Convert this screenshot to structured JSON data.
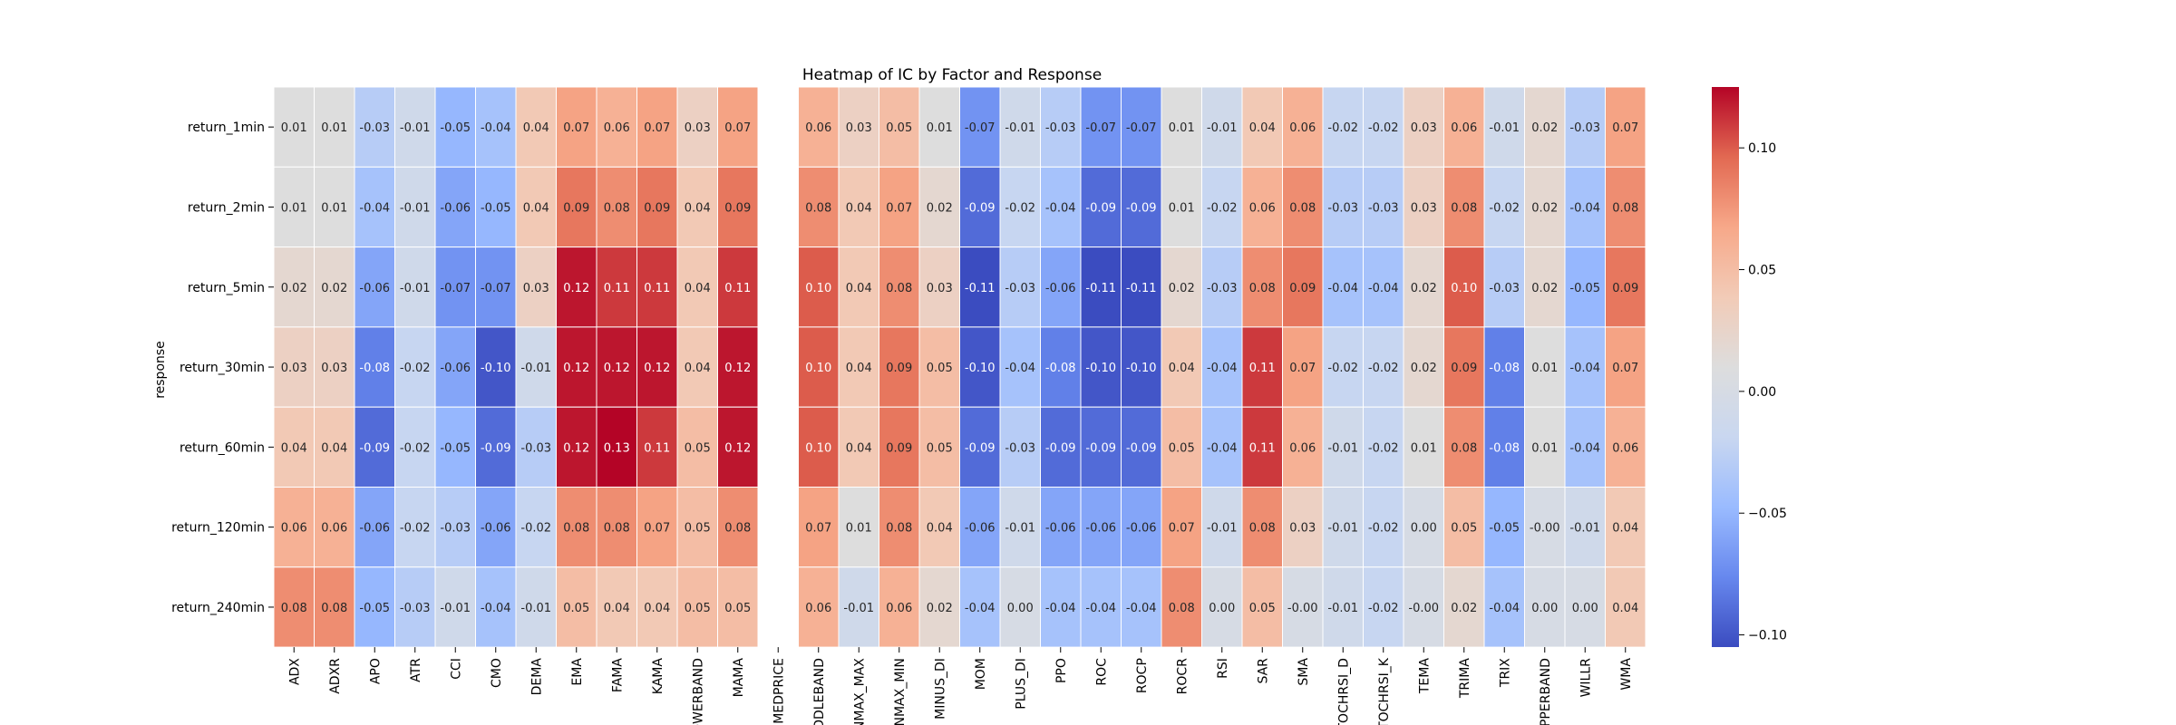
{
  "chart_data": {
    "type": "heatmap",
    "title": "Heatmap of IC by Factor and Response",
    "xlabel": "",
    "ylabel": "response",
    "columns": [
      "ADX",
      "ADXR",
      "APO",
      "ATR",
      "CCI",
      "CMO",
      "DEMA",
      "EMA",
      "FAMA",
      "KAMA",
      "OWERBAND",
      "MAMA",
      "MEDPRICE",
      "IDDLEBAND",
      "NMAX_MAX",
      "NMAX_MIN",
      "MINUS_DI",
      "MOM",
      "PLUS_DI",
      "PPO",
      "ROC",
      "ROCP",
      "ROCR",
      "RSI",
      "SAR",
      "SMA",
      "TOCHRSI_D",
      "TOCHRSI_K",
      "TEMA",
      "TRIMA",
      "TRIX",
      "PPERBAND",
      "WILLR",
      "WMA"
    ],
    "rows": [
      "return_1min",
      "return_2min",
      "return_5min",
      "return_30min",
      "return_60min",
      "return_120min",
      "return_240min"
    ],
    "values": [
      [
        0.01,
        0.01,
        -0.03,
        -0.01,
        -0.05,
        -0.04,
        0.04,
        0.07,
        0.06,
        0.07,
        0.03,
        0.07,
        null,
        0.06,
        0.03,
        0.05,
        0.01,
        -0.07,
        -0.01,
        -0.03,
        -0.07,
        -0.07,
        0.01,
        -0.01,
        0.04,
        0.06,
        -0.02,
        -0.02,
        0.03,
        0.06,
        -0.01,
        0.02,
        -0.03,
        0.07
      ],
      [
        0.01,
        0.01,
        -0.04,
        -0.01,
        -0.06,
        -0.05,
        0.04,
        0.09,
        0.08,
        0.09,
        0.04,
        0.09,
        null,
        0.08,
        0.04,
        0.07,
        0.02,
        -0.09,
        -0.02,
        -0.04,
        -0.09,
        -0.09,
        0.01,
        -0.02,
        0.06,
        0.08,
        -0.03,
        -0.03,
        0.03,
        0.08,
        -0.02,
        0.02,
        -0.04,
        0.08
      ],
      [
        0.02,
        0.02,
        -0.06,
        -0.01,
        -0.07,
        -0.07,
        0.03,
        0.12,
        0.11,
        0.11,
        0.04,
        0.11,
        null,
        0.1,
        0.04,
        0.08,
        0.03,
        -0.11,
        -0.03,
        -0.06,
        -0.11,
        -0.11,
        0.02,
        -0.03,
        0.08,
        0.09,
        -0.04,
        -0.04,
        0.02,
        0.1,
        -0.03,
        0.02,
        -0.05,
        0.09
      ],
      [
        0.03,
        0.03,
        -0.08,
        -0.02,
        -0.06,
        -0.1,
        -0.01,
        0.12,
        0.12,
        0.12,
        0.04,
        0.12,
        null,
        0.1,
        0.04,
        0.09,
        0.05,
        -0.1,
        -0.04,
        -0.08,
        -0.1,
        -0.1,
        0.04,
        -0.04,
        0.11,
        0.07,
        -0.02,
        -0.02,
        0.02,
        0.09,
        -0.08,
        0.01,
        -0.04,
        0.07
      ],
      [
        0.04,
        0.04,
        -0.09,
        -0.02,
        -0.05,
        -0.09,
        -0.03,
        0.12,
        0.13,
        0.11,
        0.05,
        0.12,
        null,
        0.1,
        0.04,
        0.09,
        0.05,
        -0.09,
        -0.03,
        -0.09,
        -0.09,
        -0.09,
        0.05,
        -0.04,
        0.11,
        0.06,
        -0.01,
        -0.02,
        0.01,
        0.08,
        -0.08,
        0.01,
        -0.04,
        0.06
      ],
      [
        0.06,
        0.06,
        -0.06,
        -0.02,
        -0.03,
        -0.06,
        -0.02,
        0.08,
        0.08,
        0.07,
        0.05,
        0.08,
        null,
        0.07,
        0.01,
        0.08,
        0.04,
        -0.06,
        -0.01,
        -0.06,
        -0.06,
        -0.06,
        0.07,
        -0.01,
        0.08,
        0.03,
        -0.01,
        -0.02,
        0.0,
        0.05,
        -0.05,
        -0.0,
        -0.01,
        0.04
      ],
      [
        0.08,
        0.08,
        -0.05,
        -0.03,
        -0.01,
        -0.04,
        -0.01,
        0.05,
        0.04,
        0.04,
        0.05,
        0.05,
        null,
        0.06,
        -0.01,
        0.06,
        0.02,
        -0.04,
        0.0,
        -0.04,
        -0.04,
        -0.04,
        0.08,
        0.0,
        0.05,
        -0.0,
        -0.01,
        -0.02,
        -0.0,
        0.02,
        -0.04,
        0.0,
        0.0,
        0.04
      ]
    ],
    "value_labels": [
      [
        "0.01",
        "0.01",
        "-0.03",
        "-0.01",
        "-0.05",
        "-0.04",
        "0.04",
        "0.07",
        "0.06",
        "0.07",
        "0.03",
        "0.07",
        "",
        "0.06",
        "0.03",
        "0.05",
        "0.01",
        "-0.07",
        "-0.01",
        "-0.03",
        "-0.07",
        "-0.07",
        "0.01",
        "-0.01",
        "0.04",
        "0.06",
        "-0.02",
        "-0.02",
        "0.03",
        "0.06",
        "-0.01",
        "0.02",
        "-0.03",
        "0.07"
      ],
      [
        "0.01",
        "0.01",
        "-0.04",
        "-0.01",
        "-0.06",
        "-0.05",
        "0.04",
        "0.09",
        "0.08",
        "0.09",
        "0.04",
        "0.09",
        "",
        "0.08",
        "0.04",
        "0.07",
        "0.02",
        "-0.09",
        "-0.02",
        "-0.04",
        "-0.09",
        "-0.09",
        "0.01",
        "-0.02",
        "0.06",
        "0.08",
        "-0.03",
        "-0.03",
        "0.03",
        "0.08",
        "-0.02",
        "0.02",
        "-0.04",
        "0.08"
      ],
      [
        "0.02",
        "0.02",
        "-0.06",
        "-0.01",
        "-0.07",
        "-0.07",
        "0.03",
        "0.12",
        "0.11",
        "0.11",
        "0.04",
        "0.11",
        "",
        "0.10",
        "0.04",
        "0.08",
        "0.03",
        "-0.11",
        "-0.03",
        "-0.06",
        "-0.11",
        "-0.11",
        "0.02",
        "-0.03",
        "0.08",
        "0.09",
        "-0.04",
        "-0.04",
        "0.02",
        "0.10",
        "-0.03",
        "0.02",
        "-0.05",
        "0.09"
      ],
      [
        "0.03",
        "0.03",
        "-0.08",
        "-0.02",
        "-0.06",
        "-0.10",
        "-0.01",
        "0.12",
        "0.12",
        "0.12",
        "0.04",
        "0.12",
        "",
        "0.10",
        "0.04",
        "0.09",
        "0.05",
        "-0.10",
        "-0.04",
        "-0.08",
        "-0.10",
        "-0.10",
        "0.04",
        "-0.04",
        "0.11",
        "0.07",
        "-0.02",
        "-0.02",
        "0.02",
        "0.09",
        "-0.08",
        "0.01",
        "-0.04",
        "0.07"
      ],
      [
        "0.04",
        "0.04",
        "-0.09",
        "-0.02",
        "-0.05",
        "-0.09",
        "-0.03",
        "0.12",
        "0.13",
        "0.11",
        "0.05",
        "0.12",
        "",
        "0.10",
        "0.04",
        "0.09",
        "0.05",
        "-0.09",
        "-0.03",
        "-0.09",
        "-0.09",
        "-0.09",
        "0.05",
        "-0.04",
        "0.11",
        "0.06",
        "-0.01",
        "-0.02",
        "0.01",
        "0.08",
        "-0.08",
        "0.01",
        "-0.04",
        "0.06"
      ],
      [
        "0.06",
        "0.06",
        "-0.06",
        "-0.02",
        "-0.03",
        "-0.06",
        "-0.02",
        "0.08",
        "0.08",
        "0.07",
        "0.05",
        "0.08",
        "",
        "0.07",
        "0.01",
        "0.08",
        "0.04",
        "-0.06",
        "-0.01",
        "-0.06",
        "-0.06",
        "-0.06",
        "0.07",
        "-0.01",
        "0.08",
        "0.03",
        "-0.01",
        "-0.02",
        "0.00",
        "0.05",
        "-0.05",
        "-0.00",
        "-0.01",
        "0.04"
      ],
      [
        "0.08",
        "0.08",
        "-0.05",
        "-0.03",
        "-0.01",
        "-0.04",
        "-0.01",
        "0.05",
        "0.04",
        "0.04",
        "0.05",
        "0.05",
        "",
        "0.06",
        "-0.01",
        "0.06",
        "0.02",
        "-0.04",
        "0.00",
        "-0.04",
        "-0.04",
        "-0.04",
        "0.08",
        "0.00",
        "0.05",
        "-0.00",
        "-0.01",
        "-0.02",
        "-0.00",
        "0.02",
        "-0.04",
        "0.00",
        "0.00",
        "0.04"
      ]
    ],
    "colormap": "coolwarm",
    "colormap_stops": [
      "#3b4cc0",
      "#6788ee",
      "#9abbff",
      "#c9d7f0",
      "#dddddd",
      "#f2cbb7",
      "#f7a889",
      "#e26952",
      "#b40426"
    ],
    "vmin": -0.105,
    "vmax": 0.125,
    "colorbar_ticks": [
      0.1,
      0.05,
      0.0,
      -0.05,
      -0.1
    ],
    "colorbar_tick_labels": [
      "0.10",
      "0.05",
      "0.00",
      "−0.05",
      "−0.10"
    ],
    "grid": false,
    "cell_border_color": "#ffffff"
  }
}
